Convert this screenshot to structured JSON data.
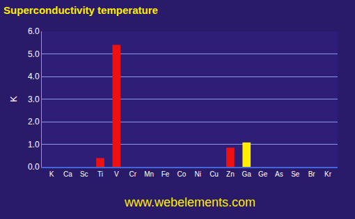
{
  "chart_data": {
    "type": "bar",
    "title": "Superconductivity temperature",
    "y_label": "K",
    "categories": [
      "K",
      "Ca",
      "Sc",
      "Ti",
      "V",
      "Cr",
      "Mn",
      "Fe",
      "Co",
      "Ni",
      "Cu",
      "Zn",
      "Ga",
      "Ge",
      "As",
      "Se",
      "Br",
      "Kr"
    ],
    "values": [
      0,
      0,
      0,
      0.39,
      5.4,
      0,
      0,
      0,
      0,
      0,
      0,
      0.85,
      1.08,
      0,
      0,
      0,
      0,
      0
    ],
    "colors": [
      "#d8d8e8",
      "#d8d8e8",
      "#ee1111",
      "#ee1111",
      "#ee1111",
      "#ee1111",
      "#ee1111",
      "#ee1111",
      "#ee1111",
      "#ee1111",
      "#ee1111",
      "#ee1111",
      "#ffee00",
      "#ffee00",
      "#ff8800",
      "#ff6600",
      "#aa0000",
      "#ffee00"
    ],
    "ylim": [
      0,
      6
    ],
    "yticks": [
      {
        "value": 0,
        "label": "0.0"
      },
      {
        "value": 1,
        "label": "1.0"
      },
      {
        "value": 2,
        "label": "2.0"
      },
      {
        "value": 3,
        "label": "3.0"
      },
      {
        "value": 4,
        "label": "4.0"
      },
      {
        "value": 5,
        "label": "5.0"
      },
      {
        "value": 6,
        "label": "6.0"
      }
    ],
    "grid": true,
    "annotations": [
      "www.webelements.com"
    ]
  }
}
